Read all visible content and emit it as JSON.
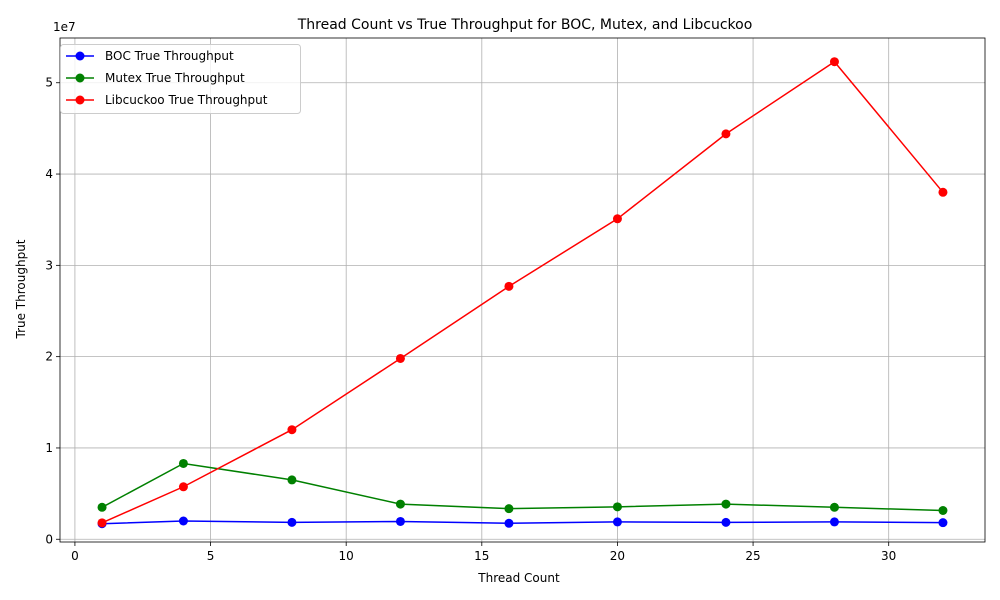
{
  "chart_data": {
    "type": "line",
    "title": "Thread Count vs True Throughput for BOC, Mutex, and Libcuckoo",
    "xlabel": "Thread Count",
    "ylabel": "True Throughput",
    "y_offset_text": "1e7",
    "xlim": [
      -0.55,
      33.55
    ],
    "ylim": [
      -300000,
      54900000
    ],
    "xticks": [
      0,
      5,
      10,
      15,
      20,
      25,
      30
    ],
    "xtick_labels": [
      "0",
      "5",
      "10",
      "15",
      "20",
      "25",
      "30"
    ],
    "yticks": [
      0,
      10000000,
      20000000,
      30000000,
      40000000,
      50000000
    ],
    "ytick_labels": [
      "0",
      "1",
      "2",
      "3",
      "4",
      "5"
    ],
    "grid": true,
    "legend_position": "top-left",
    "x": [
      1,
      4,
      8,
      12,
      16,
      20,
      24,
      28,
      32
    ],
    "series": [
      {
        "name": "BOC True Throughput",
        "color": "#0000ff",
        "values": [
          1700000,
          2000000,
          1850000,
          1950000,
          1750000,
          1900000,
          1850000,
          1900000,
          1820000
        ]
      },
      {
        "name": "Mutex True Throughput",
        "color": "#008000",
        "values": [
          3500000,
          8300000,
          6500000,
          3850000,
          3350000,
          3550000,
          3850000,
          3500000,
          3150000
        ]
      },
      {
        "name": "Libcuckoo True Throughput",
        "color": "#ff0000",
        "values": [
          1800000,
          5750000,
          12000000,
          19800000,
          27700000,
          35100000,
          44400000,
          52300000,
          38000000
        ]
      }
    ]
  }
}
